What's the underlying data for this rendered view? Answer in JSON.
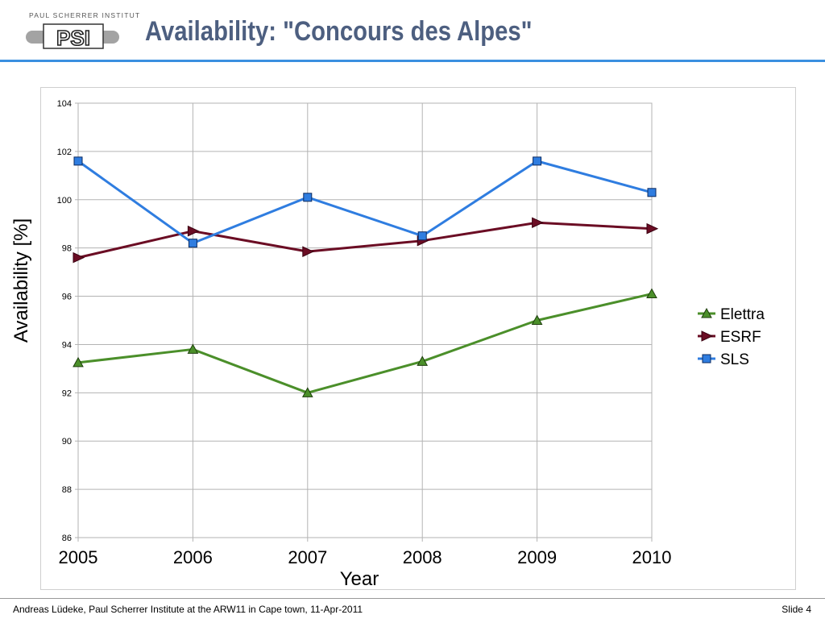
{
  "header": {
    "institute": "PAUL SCHERRER INSTITUT",
    "logo_text": "PSI",
    "title": "Availability: \"Concours des Alpes\""
  },
  "footer": {
    "left": "Andreas Lüdeke, Paul Scherrer Institute at the ARW11 in Cape town, 11-Apr-2011",
    "right": "Slide 4"
  },
  "chart_data": {
    "type": "line",
    "title": "",
    "xlabel": "Year",
    "ylabel": "Availability [%]",
    "x": [
      "2005",
      "2006",
      "2007",
      "2008",
      "2009",
      "2010"
    ],
    "ylim": [
      86,
      104
    ],
    "yticks": [
      86,
      88,
      90,
      92,
      94,
      96,
      98,
      100,
      102,
      104
    ],
    "grid": true,
    "legend_position": "right",
    "series": [
      {
        "name": "Elettra",
        "values": [
          93.25,
          93.8,
          92.0,
          93.3,
          95.0,
          96.1
        ],
        "color": "#4b8f2a",
        "marker": "triangle"
      },
      {
        "name": "ESRF",
        "values": [
          97.6,
          98.7,
          97.85,
          98.3,
          99.05,
          98.8
        ],
        "color": "#6b0d24",
        "marker": "arrow-right"
      },
      {
        "name": "SLS",
        "values": [
          101.6,
          98.2,
          100.1,
          98.5,
          101.6,
          100.3
        ],
        "color": "#2f7de0",
        "marker": "square"
      }
    ]
  }
}
